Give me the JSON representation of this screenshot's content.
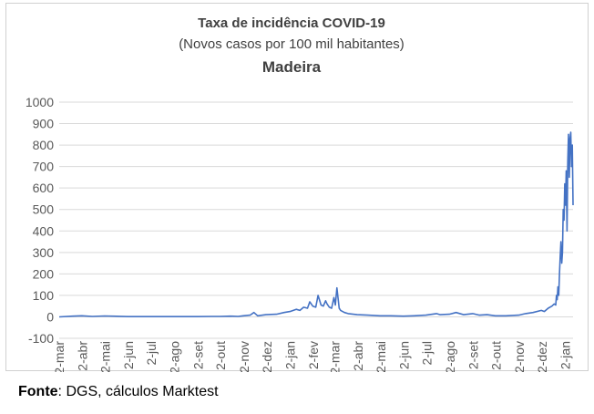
{
  "chart_data": {
    "type": "line",
    "title": "Taxa de incidência COVID-19",
    "subtitle": "(Novos casos por 100 mil habitantes)",
    "region": "Madeira",
    "xlabel": "",
    "ylabel": "",
    "ylim": [
      -100,
      1000
    ],
    "yticks": [
      -100,
      0,
      100,
      200,
      300,
      400,
      500,
      600,
      700,
      800,
      900,
      1000
    ],
    "x_tick_labels": [
      "2-mar",
      "2-abr",
      "2-mai",
      "2-jun",
      "2-jul",
      "2-ago",
      "2-set",
      "2-out",
      "2-nov",
      "2-dez",
      "2-jan",
      "2-fev",
      "2-mar",
      "2-abr",
      "2-mai",
      "2-jun",
      "2-jul",
      "2-ago",
      "2-set",
      "2-out",
      "2-nov",
      "2-dez",
      "2-jan"
    ],
    "grid": true,
    "legend": "none",
    "color": "#4472C4",
    "series": [
      {
        "name": "",
        "x": [
          "2020-03-02",
          "2020-03-20",
          "2020-04-01",
          "2020-04-15",
          "2020-05-01",
          "2020-06-01",
          "2020-07-01",
          "2020-08-01",
          "2020-09-01",
          "2020-09-20",
          "2020-10-01",
          "2020-10-15",
          "2020-10-25",
          "2020-11-01",
          "2020-11-10",
          "2020-11-15",
          "2020-11-20",
          "2020-12-01",
          "2020-12-15",
          "2020-12-25",
          "2021-01-02",
          "2021-01-10",
          "2021-01-15",
          "2021-01-20",
          "2021-01-25",
          "2021-01-28",
          "2021-02-01",
          "2021-02-05",
          "2021-02-08",
          "2021-02-12",
          "2021-02-15",
          "2021-02-18",
          "2021-02-20",
          "2021-02-23",
          "2021-02-26",
          "2021-03-01",
          "2021-03-03",
          "2021-03-05",
          "2021-03-08",
          "2021-03-10",
          "2021-03-15",
          "2021-03-20",
          "2021-04-01",
          "2021-04-15",
          "2021-05-01",
          "2021-05-15",
          "2021-06-01",
          "2021-06-15",
          "2021-07-01",
          "2021-07-15",
          "2021-07-20",
          "2021-08-01",
          "2021-08-10",
          "2021-08-20",
          "2021-09-01",
          "2021-09-10",
          "2021-09-20",
          "2021-10-01",
          "2021-10-15",
          "2021-11-01",
          "2021-11-10",
          "2021-11-20",
          "2021-12-01",
          "2021-12-05",
          "2021-12-10",
          "2021-12-15",
          "2021-12-18",
          "2021-12-20",
          "2021-12-21",
          "2021-12-22",
          "2021-12-23",
          "2021-12-24",
          "2021-12-25",
          "2021-12-26",
          "2021-12-27",
          "2021-12-28",
          "2021-12-29",
          "2021-12-30",
          "2021-12-31",
          "2022-01-01",
          "2022-01-02",
          "2022-01-03",
          "2022-01-04",
          "2022-01-05",
          "2022-01-06",
          "2022-01-07",
          "2022-01-08",
          "2022-01-09",
          "2022-01-10",
          "2022-01-11",
          "2022-01-12"
        ],
        "y": [
          0,
          3,
          5,
          2,
          4,
          1,
          1,
          1,
          1,
          2,
          2,
          3,
          2,
          5,
          8,
          20,
          5,
          10,
          12,
          20,
          25,
          35,
          30,
          45,
          40,
          70,
          50,
          45,
          100,
          55,
          50,
          75,
          60,
          45,
          40,
          90,
          55,
          135,
          40,
          30,
          20,
          15,
          10,
          8,
          5,
          5,
          3,
          5,
          8,
          15,
          10,
          12,
          20,
          10,
          15,
          8,
          10,
          5,
          5,
          8,
          15,
          20,
          30,
          25,
          40,
          50,
          60,
          55,
          100,
          80,
          140,
          100,
          200,
          280,
          350,
          250,
          300,
          500,
          450,
          620,
          520,
          680,
          400,
          720,
          850,
          650,
          830,
          860,
          700,
          800,
          520
        ]
      }
    ]
  },
  "source": {
    "label": "Fonte",
    "text": ": DGS, cálculos Marktest"
  }
}
